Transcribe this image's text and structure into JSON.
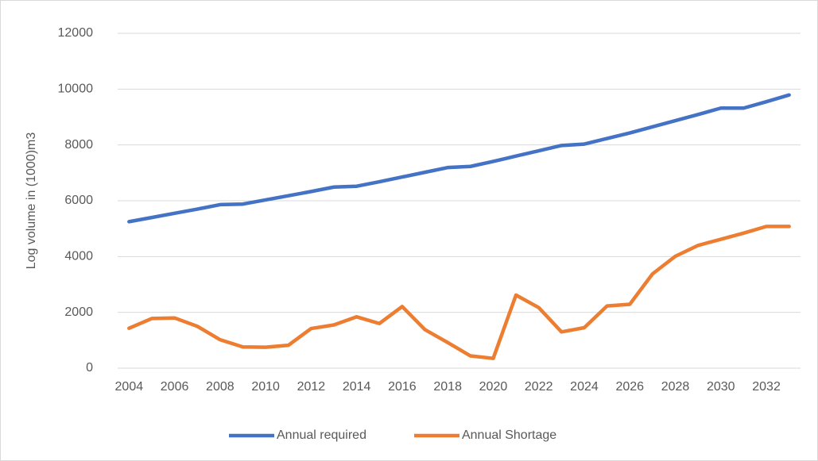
{
  "chart_data": {
    "type": "line",
    "y_label": "Log volume in (1000)m3",
    "categories": [
      "2004",
      null,
      "2006",
      null,
      "2008",
      null,
      "2010",
      null,
      "2012",
      null,
      "2014",
      null,
      "2016",
      null,
      "2018",
      null,
      "2020",
      null,
      "2022",
      null,
      "2024",
      null,
      "2026",
      null,
      "2028",
      null,
      "2030",
      null,
      "2032",
      null
    ],
    "series": [
      {
        "name": "Annual required",
        "color": "#4472c4",
        "values": [
          5250,
          5400,
          5550,
          5700,
          5860,
          5880,
          6030,
          6180,
          6330,
          6490,
          6520,
          6680,
          6850,
          7020,
          7190,
          7230,
          7410,
          7600,
          7790,
          7980,
          8030,
          8230,
          8430,
          8650,
          8870,
          9090,
          9320,
          9320,
          9550,
          9790
        ]
      },
      {
        "name": "Annual Shortage",
        "color": "#ed7d31",
        "values": [
          1430,
          1780,
          1800,
          1500,
          1020,
          760,
          750,
          820,
          1420,
          1550,
          1840,
          1600,
          2210,
          1380,
          920,
          440,
          350,
          2620,
          2170,
          1300,
          1450,
          2230,
          2290,
          3380,
          4010,
          4400,
          4620,
          4840,
          5080,
          5080
        ]
      }
    ],
    "ylim": [
      0,
      12000
    ],
    "yticks": [
      0,
      2000,
      4000,
      6000,
      8000,
      10000,
      12000
    ],
    "grid": true,
    "legend": "bottom"
  }
}
